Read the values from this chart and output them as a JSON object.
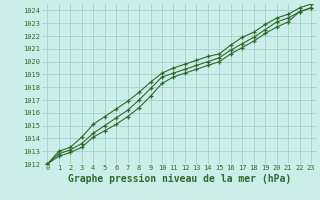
{
  "x": [
    0,
    1,
    2,
    3,
    4,
    5,
    6,
    7,
    8,
    9,
    10,
    11,
    12,
    13,
    14,
    15,
    16,
    17,
    18,
    19,
    20,
    21,
    22,
    23
  ],
  "line1": [
    1012.0,
    1012.8,
    1013.1,
    1013.6,
    1014.4,
    1015.0,
    1015.6,
    1016.2,
    1017.0,
    1017.9,
    1018.8,
    1019.1,
    1019.4,
    1019.7,
    1020.0,
    1020.3,
    1020.9,
    1021.4,
    1021.9,
    1022.5,
    1023.1,
    1023.4,
    1023.9,
    1024.2
  ],
  "line2": [
    1012.0,
    1013.0,
    1013.3,
    1014.1,
    1015.1,
    1015.7,
    1016.3,
    1016.9,
    1017.6,
    1018.4,
    1019.1,
    1019.5,
    1019.8,
    1020.1,
    1020.4,
    1020.6,
    1021.3,
    1021.9,
    1022.3,
    1022.9,
    1023.4,
    1023.7,
    1024.2,
    1024.5
  ],
  "line3": [
    1012.0,
    1012.6,
    1012.9,
    1013.3,
    1014.1,
    1014.6,
    1015.1,
    1015.7,
    1016.4,
    1017.3,
    1018.3,
    1018.8,
    1019.1,
    1019.4,
    1019.7,
    1020.0,
    1020.6,
    1021.1,
    1021.6,
    1022.2,
    1022.7,
    1023.1,
    1023.9,
    1024.2
  ],
  "line_color": "#2d6a2d",
  "bg_color": "#cceee8",
  "grid_color": "#99cccc",
  "title": "Graphe pression niveau de la mer (hPa)",
  "ylim": [
    1012,
    1024.5
  ],
  "xlim": [
    -0.5,
    23.5
  ],
  "yticks": [
    1012,
    1013,
    1014,
    1015,
    1016,
    1017,
    1018,
    1019,
    1020,
    1021,
    1022,
    1023,
    1024
  ],
  "xticks": [
    0,
    1,
    2,
    3,
    4,
    5,
    6,
    7,
    8,
    9,
    10,
    11,
    12,
    13,
    14,
    15,
    16,
    17,
    18,
    19,
    20,
    21,
    22,
    23
  ],
  "title_fontsize": 7.0,
  "tick_fontsize": 5.0
}
